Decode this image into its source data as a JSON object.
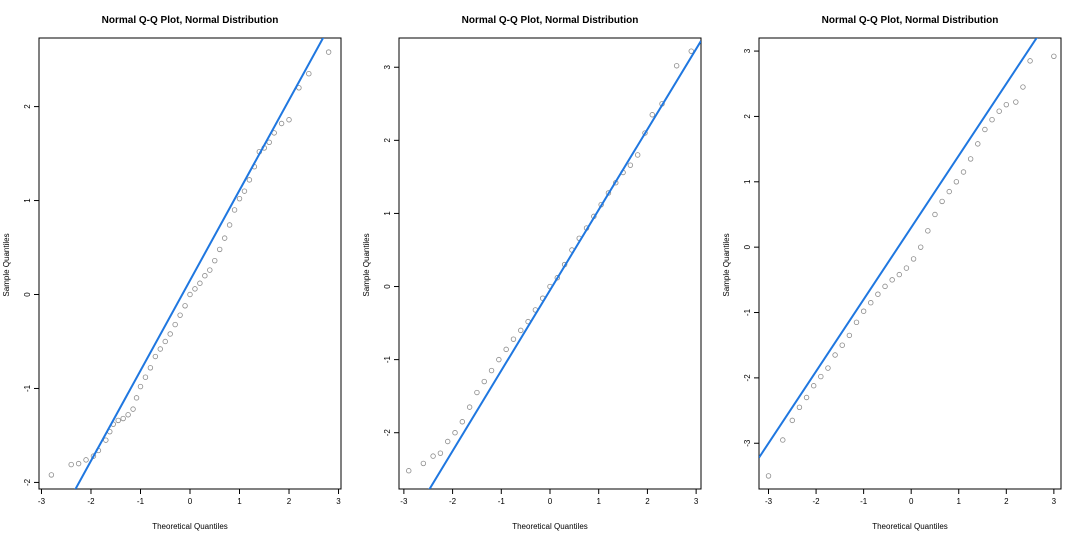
{
  "colors": {
    "points": "#8c8c8c",
    "line": "#1f77e0",
    "axes": "#000000"
  },
  "chart_data": [
    {
      "type": "scatter",
      "title": "Normal Q-Q Plot, Normal Distribution",
      "xlabel": "Theoretical Quantiles",
      "ylabel": "Sample Quantiles",
      "xlim": [
        -3.05,
        3.05
      ],
      "ylim": [
        -2.07,
        2.73
      ],
      "xticks": [
        "-3",
        "-2",
        "-1",
        "0",
        "1",
        "2",
        "3"
      ],
      "yticks": [
        "-2",
        "-1",
        "0",
        "1",
        "2"
      ],
      "reference_line": {
        "intercept": 0.15,
        "slope": 0.96
      },
      "points": [
        [
          -2.8,
          -1.92
        ],
        [
          -2.4,
          -1.81
        ],
        [
          -2.25,
          -1.8
        ],
        [
          -2.1,
          -1.76
        ],
        [
          -1.95,
          -1.72
        ],
        [
          -1.85,
          -1.66
        ],
        [
          -1.7,
          -1.55
        ],
        [
          -1.62,
          -1.46
        ],
        [
          -1.55,
          -1.38
        ],
        [
          -1.45,
          -1.34
        ],
        [
          -1.35,
          -1.32
        ],
        [
          -1.25,
          -1.28
        ],
        [
          -1.15,
          -1.22
        ],
        [
          -1.08,
          -1.1
        ],
        [
          -1.0,
          -0.98
        ],
        [
          -0.9,
          -0.88
        ],
        [
          -0.8,
          -0.78
        ],
        [
          -0.7,
          -0.66
        ],
        [
          -0.6,
          -0.58
        ],
        [
          -0.5,
          -0.5
        ],
        [
          -0.4,
          -0.42
        ],
        [
          -0.3,
          -0.32
        ],
        [
          -0.2,
          -0.22
        ],
        [
          -0.1,
          -0.12
        ],
        [
          0.0,
          0.0
        ],
        [
          0.1,
          0.06
        ],
        [
          0.2,
          0.12
        ],
        [
          0.3,
          0.2
        ],
        [
          0.4,
          0.26
        ],
        [
          0.5,
          0.36
        ],
        [
          0.6,
          0.48
        ],
        [
          0.7,
          0.6
        ],
        [
          0.8,
          0.74
        ],
        [
          0.9,
          0.9
        ],
        [
          1.0,
          1.02
        ],
        [
          1.1,
          1.1
        ],
        [
          1.2,
          1.22
        ],
        [
          1.3,
          1.36
        ],
        [
          1.4,
          1.52
        ],
        [
          1.5,
          1.56
        ],
        [
          1.6,
          1.62
        ],
        [
          1.7,
          1.72
        ],
        [
          1.85,
          1.82
        ],
        [
          2.0,
          1.86
        ],
        [
          2.2,
          2.2
        ],
        [
          2.4,
          2.35
        ],
        [
          2.8,
          2.58
        ]
      ]
    },
    {
      "type": "scatter",
      "title": "Normal Q-Q Plot, Normal Distribution",
      "xlabel": "Theoretical Quantiles",
      "ylabel": "Sample Quantiles",
      "xlim": [
        -3.1,
        3.1
      ],
      "ylim": [
        -2.77,
        3.4
      ],
      "xticks": [
        "-3",
        "-2",
        "-1",
        "0",
        "1",
        "2",
        "3"
      ],
      "yticks": [
        "-2",
        "-1",
        "0",
        "1",
        "2",
        "3"
      ],
      "reference_line": {
        "intercept": -0.05,
        "slope": 1.1
      },
      "points": [
        [
          -2.9,
          -2.52
        ],
        [
          -2.6,
          -2.42
        ],
        [
          -2.4,
          -2.32
        ],
        [
          -2.25,
          -2.28
        ],
        [
          -2.1,
          -2.12
        ],
        [
          -1.95,
          -2.0
        ],
        [
          -1.8,
          -1.85
        ],
        [
          -1.65,
          -1.65
        ],
        [
          -1.5,
          -1.45
        ],
        [
          -1.35,
          -1.3
        ],
        [
          -1.2,
          -1.15
        ],
        [
          -1.05,
          -1.0
        ],
        [
          -0.9,
          -0.86
        ],
        [
          -0.75,
          -0.72
        ],
        [
          -0.6,
          -0.6
        ],
        [
          -0.45,
          -0.48
        ],
        [
          -0.3,
          -0.32
        ],
        [
          -0.15,
          -0.16
        ],
        [
          0.0,
          0.0
        ],
        [
          0.15,
          0.12
        ],
        [
          0.3,
          0.3
        ],
        [
          0.45,
          0.5
        ],
        [
          0.6,
          0.66
        ],
        [
          0.75,
          0.8
        ],
        [
          0.9,
          0.96
        ],
        [
          1.05,
          1.12
        ],
        [
          1.2,
          1.28
        ],
        [
          1.35,
          1.42
        ],
        [
          1.5,
          1.56
        ],
        [
          1.65,
          1.66
        ],
        [
          1.8,
          1.8
        ],
        [
          1.95,
          2.1
        ],
        [
          2.1,
          2.35
        ],
        [
          2.3,
          2.5
        ],
        [
          2.6,
          3.02
        ],
        [
          2.9,
          3.22
        ]
      ]
    },
    {
      "type": "scatter",
      "title": "Normal Q-Q Plot, Normal Distribution",
      "xlabel": "Theoretical Quantiles",
      "ylabel": "Sample Quantiles",
      "xlim": [
        -3.2,
        3.15
      ],
      "ylim": [
        -3.7,
        3.2
      ],
      "xticks": [
        "-3",
        "-2",
        "-1",
        "0",
        "1",
        "2",
        "3"
      ],
      "yticks": [
        "-3",
        "-2",
        "-1",
        "0",
        "1",
        "2",
        "3"
      ],
      "reference_line": {
        "intercept": 0.3,
        "slope": 1.1
      },
      "points": [
        [
          -3.0,
          -3.5
        ],
        [
          -2.7,
          -2.95
        ],
        [
          -2.5,
          -2.65
        ],
        [
          -2.35,
          -2.45
        ],
        [
          -2.2,
          -2.3
        ],
        [
          -2.05,
          -2.12
        ],
        [
          -1.9,
          -1.98
        ],
        [
          -1.75,
          -1.85
        ],
        [
          -1.6,
          -1.65
        ],
        [
          -1.45,
          -1.5
        ],
        [
          -1.3,
          -1.35
        ],
        [
          -1.15,
          -1.15
        ],
        [
          -1.0,
          -0.98
        ],
        [
          -0.85,
          -0.85
        ],
        [
          -0.7,
          -0.72
        ],
        [
          -0.55,
          -0.6
        ],
        [
          -0.4,
          -0.5
        ],
        [
          -0.25,
          -0.42
        ],
        [
          -0.1,
          -0.32
        ],
        [
          0.05,
          -0.18
        ],
        [
          0.2,
          0.0
        ],
        [
          0.35,
          0.25
        ],
        [
          0.5,
          0.5
        ],
        [
          0.65,
          0.7
        ],
        [
          0.8,
          0.85
        ],
        [
          0.95,
          1.0
        ],
        [
          1.1,
          1.15
        ],
        [
          1.25,
          1.35
        ],
        [
          1.4,
          1.58
        ],
        [
          1.55,
          1.8
        ],
        [
          1.7,
          1.95
        ],
        [
          1.85,
          2.08
        ],
        [
          2.0,
          2.18
        ],
        [
          2.2,
          2.22
        ],
        [
          2.35,
          2.45
        ],
        [
          2.5,
          2.85
        ],
        [
          3.0,
          2.92
        ]
      ]
    }
  ]
}
